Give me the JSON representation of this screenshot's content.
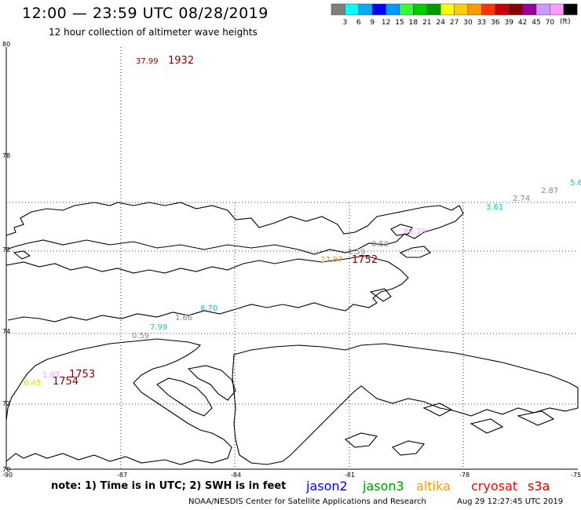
{
  "title": "12:00  —  23:59 UTC 08/28/2019",
  "subtitle": "12 hour collection of altimeter wave heights",
  "colorbar": {
    "colors": [
      "#7f7f7f",
      "#00ffff",
      "#00aaff",
      "#0000ff",
      "#0099ff",
      "#33ff33",
      "#00cc00",
      "#009900",
      "#ffff00",
      "#ffcc00",
      "#ff9900",
      "#ff3300",
      "#cc0000",
      "#880000",
      "#990099",
      "#cc99ff",
      "#ff99ff",
      "#000000"
    ],
    "labels": [
      "3",
      "6",
      "9",
      "12",
      "15",
      "18",
      "21",
      "24",
      "27",
      "30",
      "33",
      "36",
      "39",
      "42",
      "45",
      "70"
    ],
    "unit": "(ft)"
  },
  "axes": {
    "lat_labels": [
      "80",
      "78",
      "72",
      "74",
      "72",
      "70"
    ],
    "lon_labels": [
      "-90",
      "-87",
      "-84",
      "-81",
      "-78",
      "-75"
    ]
  },
  "markers": [
    {
      "text": "37.99",
      "color": "#880000"
    },
    {
      "text": "1932",
      "color": "#880000"
    },
    {
      "text": "5.6",
      "color": "#00cccc"
    },
    {
      "text": "2.87",
      "color": "#888888"
    },
    {
      "text": "2.74",
      "color": "#888888"
    },
    {
      "text": "3.61",
      "color": "#00cccc"
    },
    {
      "text": "80.29",
      "color": "#ff99ff"
    },
    {
      "text": "0.59",
      "color": "#888888"
    },
    {
      "text": "1.59",
      "color": "#888888"
    },
    {
      "text": "27.87",
      "color": "#ff9900"
    },
    {
      "text": "1752",
      "color": "#880000"
    },
    {
      "text": "8.70",
      "color": "#00cccc"
    },
    {
      "text": "1.66",
      "color": "#888888"
    },
    {
      "text": "7.99",
      "color": "#00cccc"
    },
    {
      "text": "0.59",
      "color": "#888888"
    },
    {
      "text": "1.87",
      "color": "#ff99ff"
    },
    {
      "text": "1753",
      "color": "#880000"
    },
    {
      "text": "6.45",
      "color": "#ffcc00"
    },
    {
      "text": "1754",
      "color": "#880000"
    }
  ],
  "note": "note:  1) Time is in UTC;  2) SWH is in feet",
  "satellites": [
    {
      "name": "jason2",
      "color": "#0000ff"
    },
    {
      "name": "jason3",
      "color": "#009900"
    },
    {
      "name": "altika",
      "color": "#ff9900"
    },
    {
      "name": "cryosat",
      "color": "#ff0000"
    },
    {
      "name": "s3a",
      "color": "#cc0000"
    }
  ],
  "footer": "NOAA/NESDIS Center for Satellite Applications and Research",
  "footer_time": "Aug 29 12:27:45 UTC 2019"
}
